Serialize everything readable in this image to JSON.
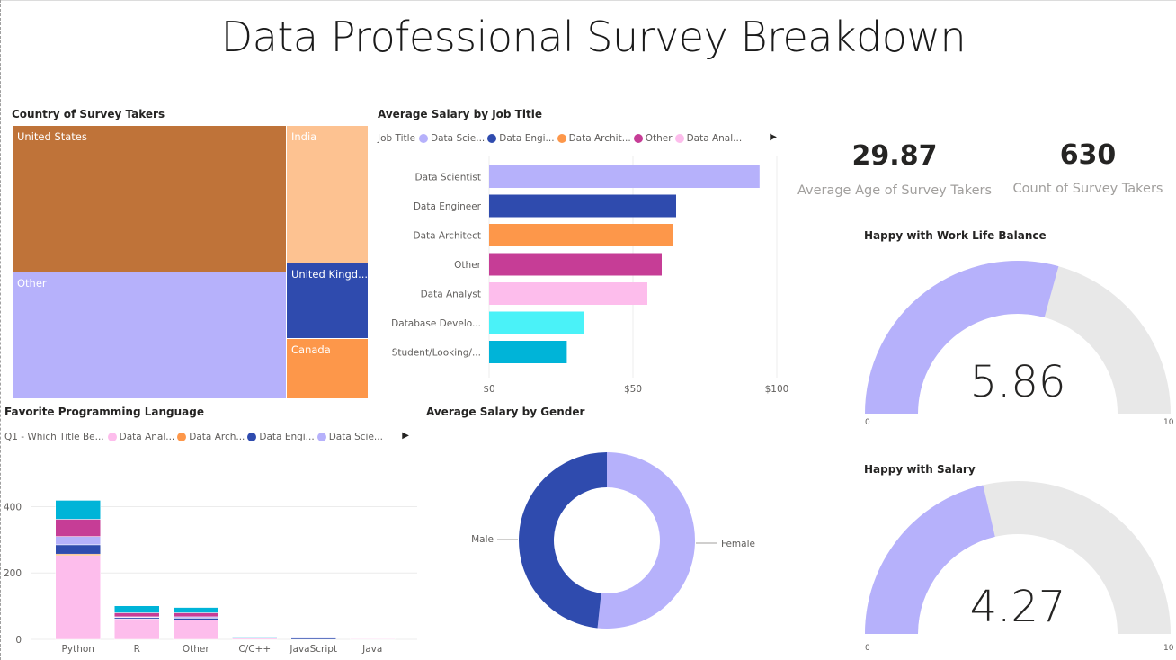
{
  "page": {
    "title": "Data Professional Survey Breakdown"
  },
  "treemap": {
    "title": "Country of Survey Takers",
    "cells": [
      {
        "label": "United States",
        "color": "#bf7339"
      },
      {
        "label": "India",
        "color": "#fdc291"
      },
      {
        "label": "Other",
        "color": "#b6b1fb"
      },
      {
        "label": "United Kingd...",
        "color": "#2f4bae"
      },
      {
        "label": "Canada",
        "color": "#fd974a"
      }
    ]
  },
  "salary_by_job": {
    "title": "Average Salary by Job Title",
    "legend_title": "Job Title",
    "legend": [
      {
        "label": "Data Scie...",
        "color": "#b6b1fb"
      },
      {
        "label": "Data Engi...",
        "color": "#2f4bae"
      },
      {
        "label": "Data Archit...",
        "color": "#fd974a"
      },
      {
        "label": "Other",
        "color": "#c63d96"
      },
      {
        "label": "Data Anal...",
        "color": "#fdbdec"
      }
    ]
  },
  "kpis": {
    "avg_age_value": "29.87",
    "avg_age_label": "Average Age of Survey Takers",
    "count_value": "630",
    "count_label": "Count of Survey Takers"
  },
  "gauge_work_life": {
    "title": "Happy with Work Life Balance",
    "value": "5.86",
    "min": "0",
    "max": "10",
    "fill_fraction": 0.586
  },
  "gauge_salary": {
    "title": "Happy with Salary",
    "value": "4.27",
    "min": "0",
    "max": "10",
    "fill_fraction": 0.427
  },
  "fav_language": {
    "title": "Favorite Programming Language",
    "legend_title": "Q1 - Which Title Be...",
    "legend": [
      {
        "label": "Data Anal...",
        "color": "#fdbdec"
      },
      {
        "label": "Data Arch...",
        "color": "#fd974a"
      },
      {
        "label": "Data Engi...",
        "color": "#2f4bae"
      },
      {
        "label": "Data Scie...",
        "color": "#b6b1fb"
      }
    ]
  },
  "salary_by_gender": {
    "title": "Average  Salary by Gender",
    "labels": [
      "Male",
      "Female"
    ]
  },
  "chart_data": [
    {
      "type": "bar",
      "orientation": "horizontal",
      "title": "Average Salary by Job Title",
      "categories": [
        "Data Scientist",
        "Data Engineer",
        "Data Architect",
        "Other",
        "Data Analyst",
        "Database Develo...",
        "Student/Looking/..."
      ],
      "values": [
        94,
        65,
        64,
        60,
        55,
        33,
        27
      ],
      "colors": [
        "#b6b1fb",
        "#2f4bae",
        "#fd974a",
        "#c63d96",
        "#fdbdec",
        "#4af2f8",
        "#00b4d8"
      ],
      "xticks": [
        "$0",
        "$50",
        "$100"
      ],
      "xlim": [
        0,
        100
      ],
      "grid": true
    },
    {
      "type": "bar",
      "stacked": true,
      "title": "Favorite Programming Language",
      "categories": [
        "Python",
        "R",
        "Other",
        "C/C++",
        "JavaScript",
        "Java"
      ],
      "series": [
        {
          "name": "Data Analyst",
          "color": "#fdbdec",
          "values": [
            253,
            62,
            58,
            6,
            0,
            2
          ]
        },
        {
          "name": "Data Architect",
          "color": "#fd974a",
          "values": [
            4,
            0,
            0,
            0,
            0,
            0
          ]
        },
        {
          "name": "Data Engineer",
          "color": "#2f4bae",
          "values": [
            28,
            4,
            6,
            0,
            6,
            0
          ]
        },
        {
          "name": "Data Scientist",
          "color": "#b6b1fb",
          "values": [
            25,
            2,
            4,
            0,
            2,
            0
          ]
        },
        {
          "name": "Other",
          "color": "#c63d96",
          "values": [
            52,
            12,
            12,
            0,
            0,
            0
          ]
        },
        {
          "name": "Student/Looking/None",
          "color": "#00b4d8",
          "values": [
            57,
            21,
            16,
            2,
            0,
            0
          ]
        }
      ],
      "yticks": [
        "0",
        "200",
        "400"
      ],
      "ylim": [
        0,
        450
      ],
      "grid": true
    },
    {
      "type": "pie",
      "donut": true,
      "title": "Average  Salary by Gender",
      "categories": [
        "Male",
        "Female"
      ],
      "values": [
        48.3,
        51.7
      ],
      "colors": [
        "#2f4bae",
        "#b6b1fb"
      ]
    }
  ]
}
